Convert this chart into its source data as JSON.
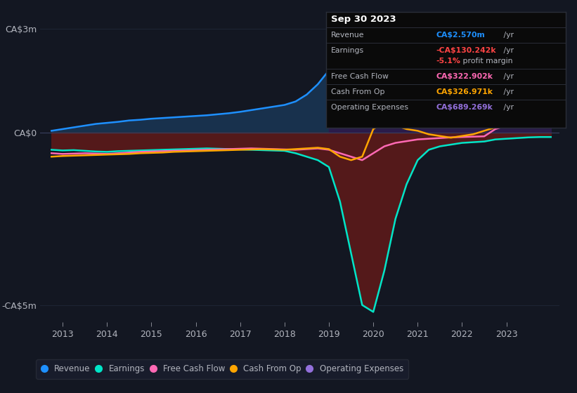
{
  "background_color": "#131722",
  "plot_bg_color": "#131722",
  "grid_color": "#1e2535",
  "text_color": "#b2b5be",
  "ylim": [
    -5500000,
    3500000
  ],
  "xlim": [
    2012.5,
    2024.2
  ],
  "yticks": [
    -5000000,
    0,
    3000000
  ],
  "ytick_labels": [
    "-CA$5m",
    "CA$0",
    "CA$3m"
  ],
  "xticks": [
    2013,
    2014,
    2015,
    2016,
    2017,
    2018,
    2019,
    2020,
    2021,
    2022,
    2023
  ],
  "series_colors": {
    "revenue": "#1e90ff",
    "earnings": "#00e5c8",
    "free_cash_flow": "#ff69b4",
    "cash_from_op": "#ffa500",
    "operating_expenses": "#9370db"
  },
  "info_box": {
    "date": "Sep 30 2023",
    "revenue_label": "Revenue",
    "revenue_value": "CA$2.570m",
    "revenue_color": "#1e90ff",
    "earnings_label": "Earnings",
    "earnings_value": "-CA$130.242k",
    "earnings_color": "#ff4444",
    "margin_value": "-5.1%",
    "margin_color": "#ff4444",
    "fcf_label": "Free Cash Flow",
    "fcf_value": "CA$322.902k",
    "fcf_color": "#ff69b4",
    "cfo_label": "Cash From Op",
    "cfo_value": "CA$326.971k",
    "cfo_color": "#ffa500",
    "opex_label": "Operating Expenses",
    "opex_value": "CA$689.269k",
    "opex_color": "#9370db"
  },
  "legend": [
    {
      "label": "Revenue",
      "color": "#1e90ff"
    },
    {
      "label": "Earnings",
      "color": "#00e5c8"
    },
    {
      "label": "Free Cash Flow",
      "color": "#ff69b4"
    },
    {
      "label": "Cash From Op",
      "color": "#ffa500"
    },
    {
      "label": "Operating Expenses",
      "color": "#9370db"
    }
  ],
  "x": [
    2012.75,
    2013.0,
    2013.25,
    2013.5,
    2013.75,
    2014.0,
    2014.25,
    2014.5,
    2014.75,
    2015.0,
    2015.25,
    2015.5,
    2015.75,
    2016.0,
    2016.25,
    2016.5,
    2016.75,
    2017.0,
    2017.25,
    2017.5,
    2017.75,
    2018.0,
    2018.25,
    2018.5,
    2018.75,
    2019.0,
    2019.25,
    2019.5,
    2019.75,
    2020.0,
    2020.25,
    2020.5,
    2020.75,
    2021.0,
    2021.25,
    2021.5,
    2021.75,
    2022.0,
    2022.25,
    2022.5,
    2022.75,
    2023.0,
    2023.25,
    2023.5,
    2023.75,
    2024.0
  ],
  "revenue": [
    50000,
    100000,
    150000,
    200000,
    250000,
    280000,
    310000,
    350000,
    370000,
    400000,
    420000,
    440000,
    460000,
    480000,
    500000,
    530000,
    560000,
    600000,
    650000,
    700000,
    750000,
    800000,
    900000,
    1100000,
    1400000,
    1800000,
    2200000,
    2500000,
    2600000,
    2700000,
    2600000,
    2500000,
    2400000,
    2200000,
    2100000,
    2000000,
    2100000,
    2200000,
    2100000,
    2000000,
    2100000,
    2200000,
    2300000,
    2400000,
    2500000,
    2570000
  ],
  "earnings": [
    -500000,
    -520000,
    -510000,
    -530000,
    -550000,
    -560000,
    -540000,
    -530000,
    -520000,
    -510000,
    -500000,
    -490000,
    -480000,
    -470000,
    -460000,
    -470000,
    -480000,
    -490000,
    -500000,
    -510000,
    -520000,
    -530000,
    -600000,
    -700000,
    -800000,
    -1000000,
    -2000000,
    -3500000,
    -5000000,
    -5200000,
    -4000000,
    -2500000,
    -1500000,
    -800000,
    -500000,
    -400000,
    -350000,
    -300000,
    -280000,
    -260000,
    -200000,
    -180000,
    -160000,
    -140000,
    -130242,
    -130242
  ],
  "free_cash_flow": [
    -600000,
    -620000,
    -610000,
    -600000,
    -610000,
    -620000,
    -600000,
    -580000,
    -560000,
    -550000,
    -540000,
    -530000,
    -520000,
    -510000,
    -500000,
    -490000,
    -480000,
    -470000,
    -460000,
    -470000,
    -480000,
    -490000,
    -500000,
    -480000,
    -460000,
    -500000,
    -600000,
    -700000,
    -800000,
    -600000,
    -400000,
    -300000,
    -250000,
    -200000,
    -180000,
    -160000,
    -140000,
    -130000,
    -120000,
    -110000,
    100000,
    200000,
    280000,
    310000,
    322000,
    322902
  ],
  "cash_from_op": [
    -700000,
    -680000,
    -670000,
    -660000,
    -650000,
    -640000,
    -630000,
    -620000,
    -600000,
    -590000,
    -580000,
    -560000,
    -550000,
    -540000,
    -530000,
    -520000,
    -510000,
    -500000,
    -490000,
    -480000,
    -490000,
    -500000,
    -480000,
    -460000,
    -440000,
    -480000,
    -700000,
    -800000,
    -700000,
    100000,
    300000,
    200000,
    100000,
    50000,
    -50000,
    -100000,
    -150000,
    -100000,
    -50000,
    50000,
    150000,
    250000,
    300000,
    320000,
    326000,
    326971
  ],
  "operating_expenses": [
    0,
    0,
    0,
    0,
    0,
    0,
    0,
    0,
    0,
    0,
    0,
    0,
    0,
    0,
    0,
    0,
    0,
    0,
    0,
    0,
    0,
    0,
    0,
    0,
    0,
    500000,
    900000,
    800000,
    750000,
    700000,
    650000,
    600000,
    580000,
    560000,
    540000,
    520000,
    500000,
    510000,
    520000,
    530000,
    560000,
    580000,
    600000,
    630000,
    660000,
    689269
  ]
}
